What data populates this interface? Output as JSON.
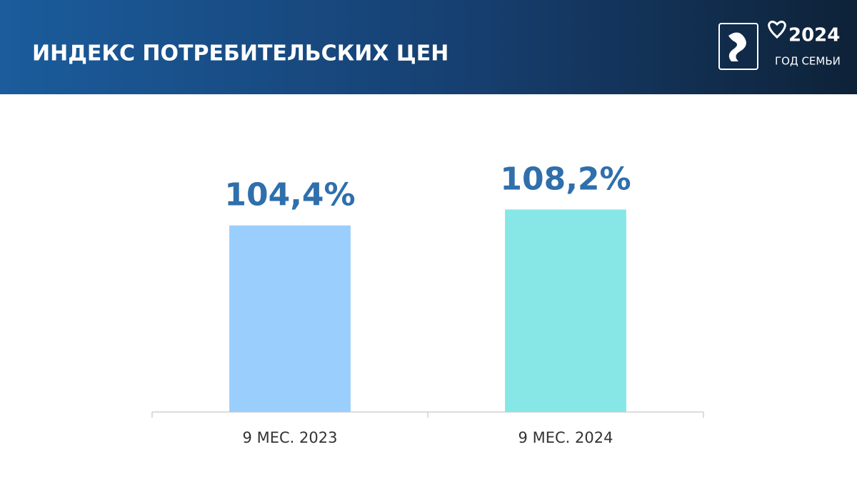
{
  "chart_data": {
    "type": "bar",
    "title": "ИНДЕКС ПОТРЕБИТЕЛЬСКИХ ЦЕН",
    "categories": [
      "9 МЕС. 2023",
      "9 МЕС. 2024"
    ],
    "values": [
      104.4,
      108.2
    ],
    "value_labels": [
      "104,4%",
      "108,2%"
    ],
    "colors": [
      "#9acffd",
      "#87e7e7"
    ],
    "ylim": [
      60,
      112
    ]
  },
  "logo": {
    "year": "2024",
    "caption": "ГОД СЕМЬИ"
  }
}
